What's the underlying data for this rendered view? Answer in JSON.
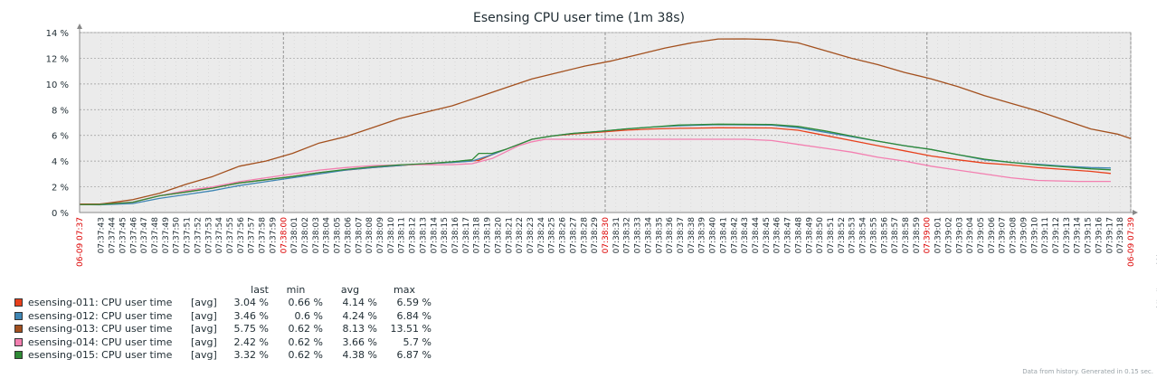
{
  "chart_data": {
    "type": "line",
    "title": "Esensing CPU user time (1m 38s)",
    "y_ticks": [
      "0 %",
      "2 %",
      "4 %",
      "6 %",
      "8 %",
      "10 %",
      "12 %",
      "14 %"
    ],
    "ylim": [
      0,
      14
    ],
    "grid": true,
    "x_start_label": "06-09 07:37",
    "x_end_label": "06-09 07:39",
    "x_ticks": [
      "07:37:43",
      "07:37:44",
      "07:37:45",
      "07:37:46",
      "07:37:47",
      "07:37:48",
      "07:37:49",
      "07:37:50",
      "07:37:51",
      "07:37:52",
      "07:37:53",
      "07:37:54",
      "07:37:55",
      "07:37:56",
      "07:37:57",
      "07:37:58",
      "07:37:59",
      "07:38:00",
      "07:38:01",
      "07:38:02",
      "07:38:03",
      "07:38:04",
      "07:38:05",
      "07:38:06",
      "07:38:07",
      "07:38:08",
      "07:38:09",
      "07:38:10",
      "07:38:11",
      "07:38:12",
      "07:38:13",
      "07:38:14",
      "07:38:15",
      "07:38:16",
      "07:38:17",
      "07:38:18",
      "07:38:19",
      "07:38:20",
      "07:38:21",
      "07:38:22",
      "07:38:23",
      "07:38:24",
      "07:38:25",
      "07:38:26",
      "07:38:27",
      "07:38:28",
      "07:38:29",
      "07:38:30",
      "07:38:31",
      "07:38:32",
      "07:38:33",
      "07:38:34",
      "07:38:35",
      "07:38:36",
      "07:38:37",
      "07:38:38",
      "07:38:39",
      "07:38:40",
      "07:38:41",
      "07:38:42",
      "07:38:43",
      "07:38:44",
      "07:38:45",
      "07:38:46",
      "07:38:47",
      "07:38:48",
      "07:38:49",
      "07:38:50",
      "07:38:51",
      "07:38:52",
      "07:38:53",
      "07:38:54",
      "07:38:55",
      "07:38:56",
      "07:38:57",
      "07:38:58",
      "07:38:59",
      "07:39:00",
      "07:39:01",
      "07:39:02",
      "07:39:03",
      "07:39:04",
      "07:39:05",
      "07:39:06",
      "07:39:07",
      "07:39:08",
      "07:39:09",
      "07:39:10",
      "07:39:11",
      "07:39:12",
      "07:39:13",
      "07:39:14",
      "07:39:15",
      "07:39:16",
      "07:39:17",
      "07:39:18"
    ],
    "x_major_ticks": [
      "07:38:00",
      "07:38:30",
      "07:39:00"
    ],
    "legend_header": {
      "last": "last",
      "min": "min",
      "avg": "avg",
      "max": "max"
    },
    "series": [
      {
        "name": "esensing-011: CPU user time",
        "fn": "[avg]",
        "color": "#e8401c",
        "last": "3.04 %",
        "min": "0.66 %",
        "avg": "4.14 %",
        "max": "6.59 %",
        "values": [
          [
            0,
            0.66
          ],
          [
            3,
            0.66
          ],
          [
            8,
            0.8
          ],
          [
            12,
            1.3
          ],
          [
            16,
            1.6
          ],
          [
            20,
            1.9
          ],
          [
            24,
            2.3
          ],
          [
            28,
            2.55
          ],
          [
            32,
            2.8
          ],
          [
            36,
            3.1
          ],
          [
            40,
            3.3
          ],
          [
            44,
            3.5
          ],
          [
            48,
            3.65
          ],
          [
            52,
            3.8
          ],
          [
            56,
            3.9
          ],
          [
            60,
            4.05
          ],
          [
            62,
            4.5
          ],
          [
            64,
            4.9
          ],
          [
            66,
            5.3
          ],
          [
            68,
            5.7
          ],
          [
            71,
            5.95
          ],
          [
            74,
            6.1
          ],
          [
            78,
            6.25
          ],
          [
            82,
            6.4
          ],
          [
            86,
            6.5
          ],
          [
            90,
            6.55
          ],
          [
            96,
            6.59
          ],
          [
            104,
            6.58
          ],
          [
            108,
            6.4
          ],
          [
            112,
            6.0
          ],
          [
            116,
            5.6
          ],
          [
            120,
            5.2
          ],
          [
            124,
            4.8
          ],
          [
            128,
            4.4
          ],
          [
            132,
            4.1
          ],
          [
            136,
            3.85
          ],
          [
            140,
            3.7
          ],
          [
            144,
            3.5
          ],
          [
            148,
            3.35
          ],
          [
            152,
            3.2
          ],
          [
            155,
            3.04
          ]
        ]
      },
      {
        "name": "esensing-012: CPU user time",
        "fn": "[avg]",
        "color": "#3f86b4",
        "last": "3.46 %",
        "min": "0.6 %",
        "avg": "4.24 %",
        "max": "6.84 %",
        "values": [
          [
            0,
            0.62
          ],
          [
            3,
            0.6
          ],
          [
            8,
            0.7
          ],
          [
            12,
            1.1
          ],
          [
            16,
            1.4
          ],
          [
            20,
            1.7
          ],
          [
            24,
            2.1
          ],
          [
            28,
            2.4
          ],
          [
            32,
            2.7
          ],
          [
            36,
            3.0
          ],
          [
            40,
            3.3
          ],
          [
            44,
            3.5
          ],
          [
            48,
            3.65
          ],
          [
            52,
            3.8
          ],
          [
            56,
            3.9
          ],
          [
            59,
            4.0
          ],
          [
            62,
            4.5
          ],
          [
            64,
            4.9
          ],
          [
            66,
            5.3
          ],
          [
            68,
            5.7
          ],
          [
            71,
            5.95
          ],
          [
            74,
            6.15
          ],
          [
            78,
            6.3
          ],
          [
            82,
            6.5
          ],
          [
            86,
            6.65
          ],
          [
            90,
            6.75
          ],
          [
            96,
            6.84
          ],
          [
            104,
            6.8
          ],
          [
            108,
            6.6
          ],
          [
            112,
            6.25
          ],
          [
            116,
            5.9
          ],
          [
            120,
            5.55
          ],
          [
            124,
            5.2
          ],
          [
            128,
            4.9
          ],
          [
            132,
            4.5
          ],
          [
            136,
            4.1
          ],
          [
            140,
            3.9
          ],
          [
            144,
            3.75
          ],
          [
            148,
            3.6
          ],
          [
            152,
            3.5
          ],
          [
            155,
            3.46
          ]
        ]
      },
      {
        "name": "esensing-013: CPU user time",
        "fn": "[avg]",
        "color": "#a3501e",
        "last": "5.75 %",
        "min": "0.62 %",
        "avg": "8.13 %",
        "max": "13.51 %",
        "values": [
          [
            0,
            0.62
          ],
          [
            3,
            0.65
          ],
          [
            8,
            1.0
          ],
          [
            12,
            1.5
          ],
          [
            16,
            2.2
          ],
          [
            20,
            2.8
          ],
          [
            24,
            3.6
          ],
          [
            28,
            4.0
          ],
          [
            32,
            4.6
          ],
          [
            36,
            5.4
          ],
          [
            40,
            5.9
          ],
          [
            44,
            6.6
          ],
          [
            48,
            7.3
          ],
          [
            52,
            7.8
          ],
          [
            56,
            8.3
          ],
          [
            60,
            9.0
          ],
          [
            64,
            9.7
          ],
          [
            68,
            10.4
          ],
          [
            72,
            10.9
          ],
          [
            76,
            11.4
          ],
          [
            80,
            11.8
          ],
          [
            84,
            12.3
          ],
          [
            88,
            12.8
          ],
          [
            92,
            13.2
          ],
          [
            96,
            13.5
          ],
          [
            100,
            13.51
          ],
          [
            104,
            13.45
          ],
          [
            108,
            13.2
          ],
          [
            112,
            12.6
          ],
          [
            116,
            12.0
          ],
          [
            120,
            11.5
          ],
          [
            124,
            10.9
          ],
          [
            128,
            10.4
          ],
          [
            132,
            9.8
          ],
          [
            136,
            9.1
          ],
          [
            140,
            8.5
          ],
          [
            144,
            7.9
          ],
          [
            148,
            7.2
          ],
          [
            152,
            6.5
          ],
          [
            156,
            6.1
          ],
          [
            158,
            5.75
          ]
        ]
      },
      {
        "name": "esensing-014: CPU user time",
        "fn": "[avg]",
        "color": "#f37fb0",
        "last": "2.42 %",
        "min": "0.62 %",
        "avg": "3.66 %",
        "max": "5.7 %",
        "values": [
          [
            0,
            0.62
          ],
          [
            3,
            0.62
          ],
          [
            8,
            0.8
          ],
          [
            12,
            1.3
          ],
          [
            16,
            1.7
          ],
          [
            20,
            2.0
          ],
          [
            24,
            2.4
          ],
          [
            28,
            2.7
          ],
          [
            32,
            3.0
          ],
          [
            36,
            3.3
          ],
          [
            40,
            3.5
          ],
          [
            44,
            3.65
          ],
          [
            48,
            3.7
          ],
          [
            52,
            3.72
          ],
          [
            56,
            3.72
          ],
          [
            59,
            3.8
          ],
          [
            62,
            4.2
          ],
          [
            64,
            4.7
          ],
          [
            66,
            5.2
          ],
          [
            68,
            5.5
          ],
          [
            70,
            5.7
          ],
          [
            80,
            5.7
          ],
          [
            90,
            5.7
          ],
          [
            100,
            5.7
          ],
          [
            104,
            5.6
          ],
          [
            108,
            5.3
          ],
          [
            112,
            5.0
          ],
          [
            116,
            4.7
          ],
          [
            120,
            4.3
          ],
          [
            124,
            4.0
          ],
          [
            128,
            3.6
          ],
          [
            132,
            3.3
          ],
          [
            136,
            3.0
          ],
          [
            140,
            2.7
          ],
          [
            144,
            2.5
          ],
          [
            150,
            2.42
          ],
          [
            155,
            2.42
          ]
        ]
      },
      {
        "name": "esensing-015: CPU user time",
        "fn": "[avg]",
        "color": "#2f8a36",
        "last": "3.32 %",
        "min": "0.62 %",
        "avg": "4.38 %",
        "max": "6.87 %",
        "values": [
          [
            0,
            0.62
          ],
          [
            3,
            0.62
          ],
          [
            8,
            0.8
          ],
          [
            12,
            1.3
          ],
          [
            16,
            1.6
          ],
          [
            20,
            1.9
          ],
          [
            24,
            2.3
          ],
          [
            28,
            2.55
          ],
          [
            32,
            2.8
          ],
          [
            36,
            3.1
          ],
          [
            40,
            3.35
          ],
          [
            44,
            3.55
          ],
          [
            48,
            3.7
          ],
          [
            52,
            3.8
          ],
          [
            56,
            3.95
          ],
          [
            59,
            4.1
          ],
          [
            60,
            4.6
          ],
          [
            62,
            4.6
          ],
          [
            64,
            4.9
          ],
          [
            66,
            5.3
          ],
          [
            68,
            5.7
          ],
          [
            71,
            5.95
          ],
          [
            74,
            6.15
          ],
          [
            78,
            6.3
          ],
          [
            82,
            6.5
          ],
          [
            86,
            6.65
          ],
          [
            90,
            6.8
          ],
          [
            96,
            6.87
          ],
          [
            104,
            6.85
          ],
          [
            108,
            6.7
          ],
          [
            112,
            6.35
          ],
          [
            116,
            5.95
          ],
          [
            120,
            5.55
          ],
          [
            124,
            5.2
          ],
          [
            128,
            4.9
          ],
          [
            132,
            4.5
          ],
          [
            136,
            4.15
          ],
          [
            140,
            3.9
          ],
          [
            144,
            3.7
          ],
          [
            148,
            3.55
          ],
          [
            152,
            3.4
          ],
          [
            155,
            3.32
          ]
        ]
      }
    ]
  }
}
